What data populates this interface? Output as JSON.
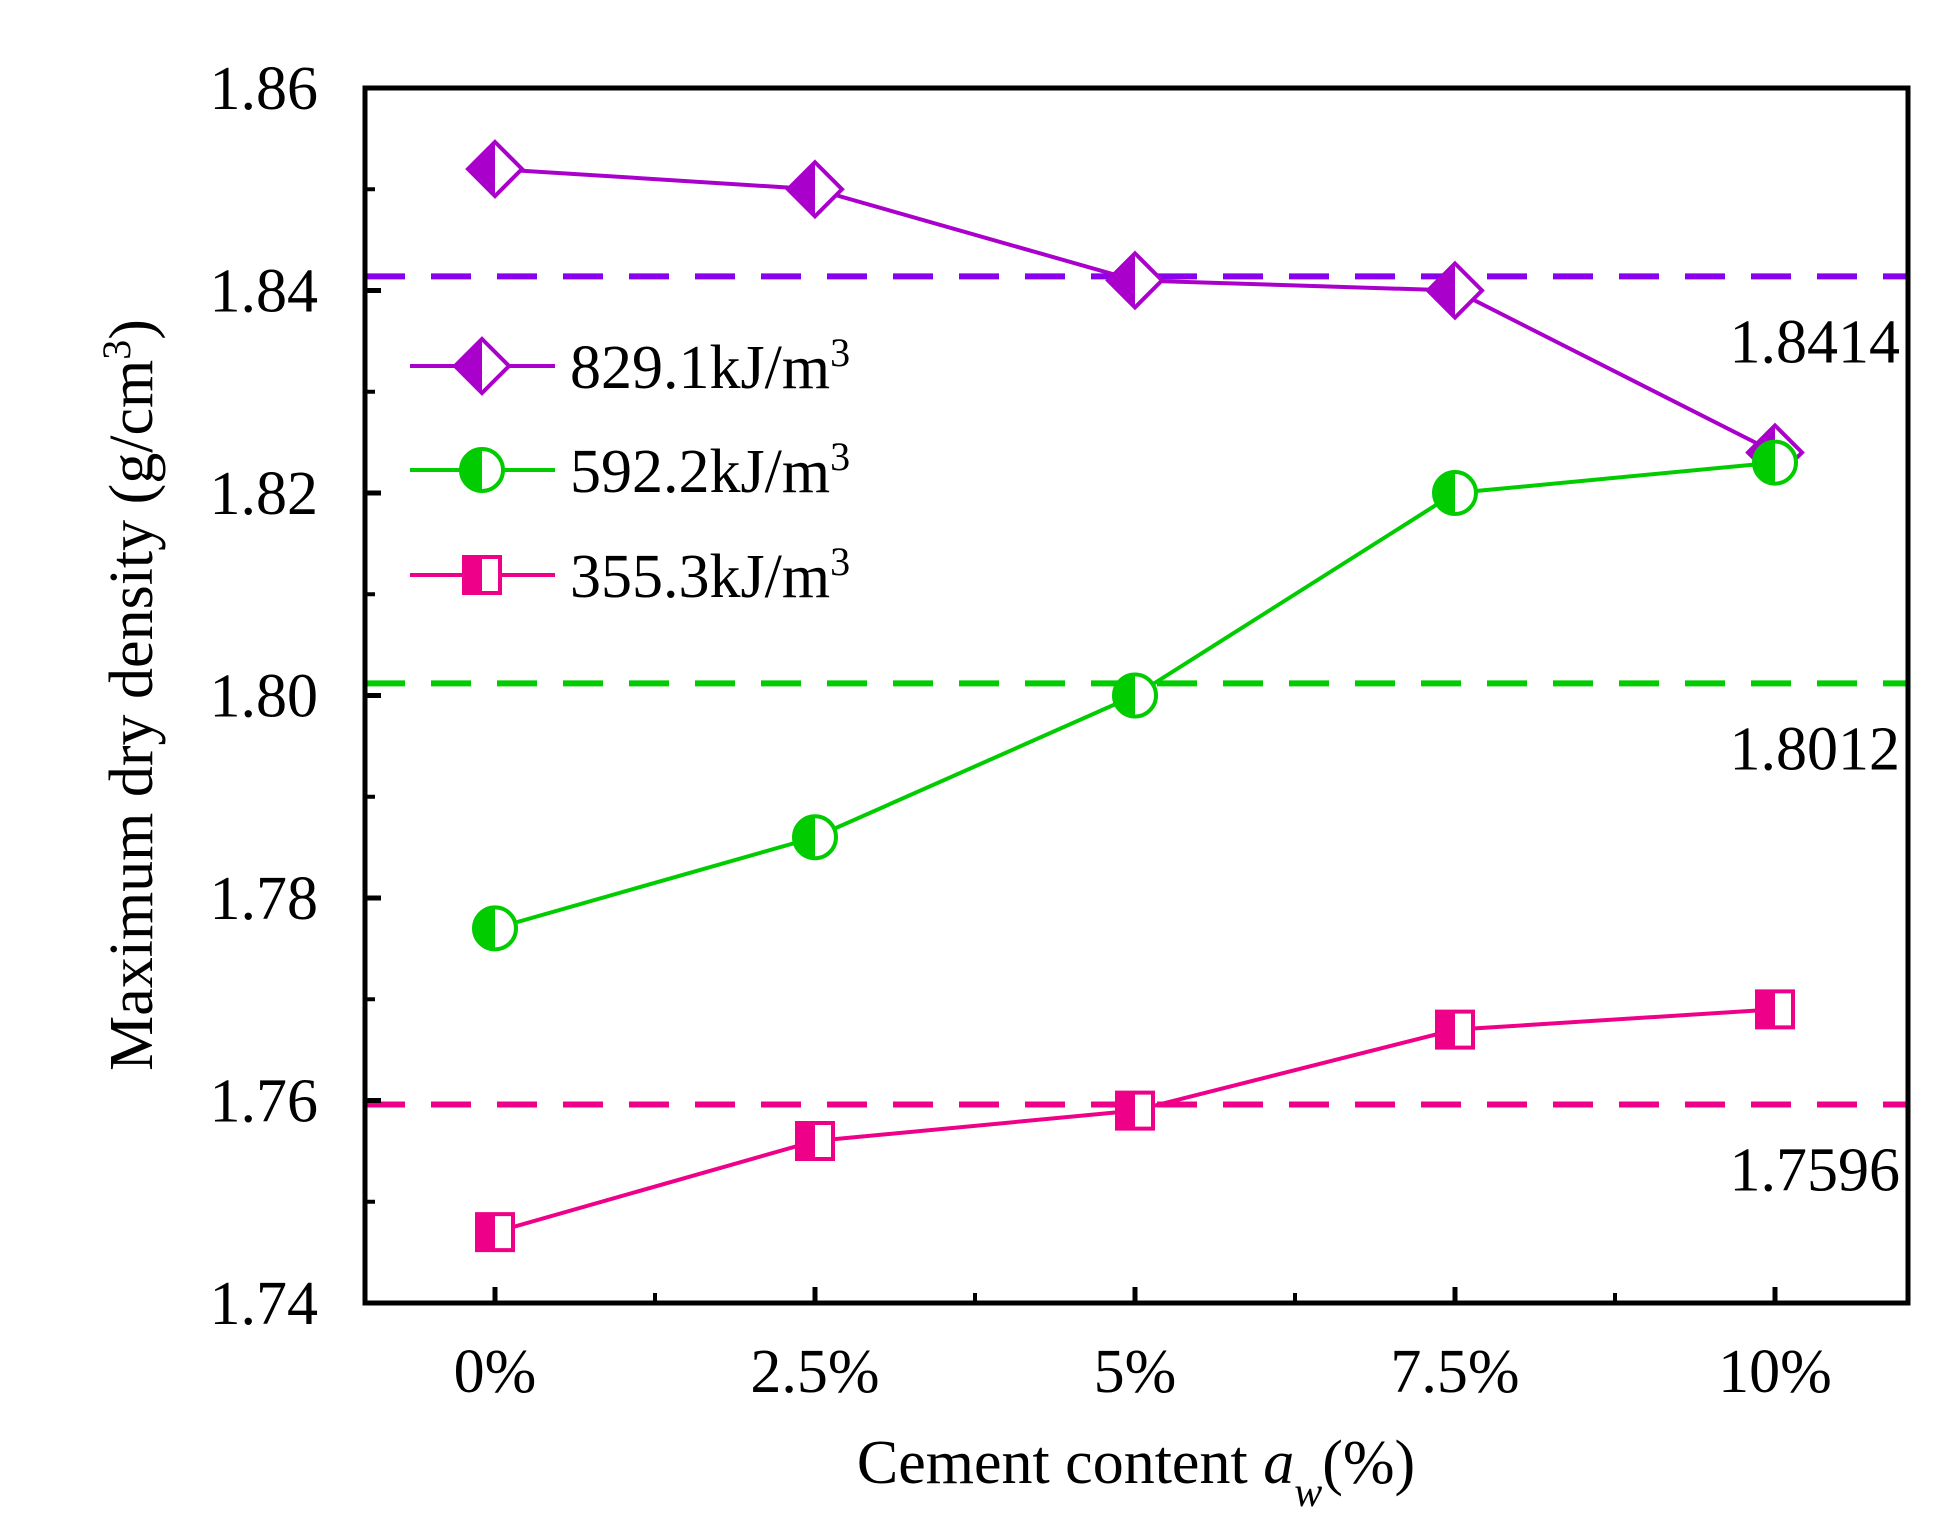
{
  "chart_data": {
    "type": "line",
    "xlabel": "Cement content ",
    "xlabel_var": "a",
    "xlabel_sub": "w",
    "xlabel_unit": "(%)",
    "ylabel": "Maximum dry density (g/cm",
    "ylabel_sup": "3",
    "ylabel_end": ")",
    "categories": [
      "0%",
      "2.5%",
      "5%",
      "7.5%",
      "10%"
    ],
    "ylim": [
      1.74,
      1.86
    ],
    "yticks": [
      "1.74",
      "1.76",
      "1.78",
      "1.80",
      "1.82",
      "1.84",
      "1.86"
    ],
    "legend_position": "upper-left",
    "grid": false,
    "series": [
      {
        "name": "829.1kJ/m",
        "name_sup": "3",
        "color": "#aa00cc",
        "marker": "diamond-half",
        "values": [
          1.852,
          1.85,
          1.841,
          1.84,
          1.824
        ]
      },
      {
        "name": "592.2kJ/m",
        "name_sup": "3",
        "color": "#00cc00",
        "marker": "circle-half",
        "values": [
          1.777,
          1.786,
          1.8,
          1.82,
          1.823
        ]
      },
      {
        "name": "355.3kJ/m",
        "name_sup": "3",
        "color": "#ee0088",
        "marker": "square-half",
        "values": [
          1.747,
          1.756,
          1.759,
          1.767,
          1.769
        ]
      }
    ],
    "reference_lines": [
      {
        "value": 1.8414,
        "label": "1.8414",
        "color": "#8800ee"
      },
      {
        "value": 1.8012,
        "label": "1.8012",
        "color": "#00cc00"
      },
      {
        "value": 1.7596,
        "label": "1.7596",
        "color": "#ee0088"
      }
    ]
  }
}
